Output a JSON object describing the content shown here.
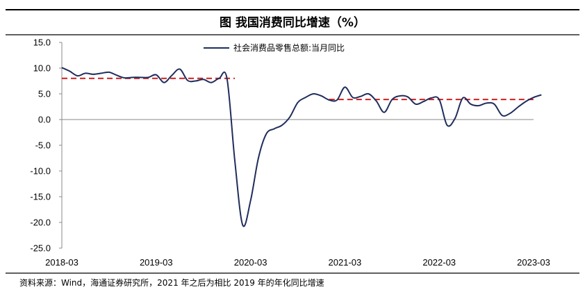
{
  "chart_data": {
    "type": "line",
    "title": "图  我国消费同比增速（%）",
    "xlabel": "",
    "ylabel": "",
    "ylim": [
      -25,
      15
    ],
    "yticks": [
      "15.0",
      "10.0",
      "5.0",
      "0.0",
      "-5.0",
      "-10.0",
      "-15.0",
      "-20.0",
      "-25.0"
    ],
    "ytick_values": [
      15,
      10,
      5,
      0,
      -5,
      -10,
      -15,
      -20,
      -25
    ],
    "xticks": [
      "2018-03",
      "2019-03",
      "2020-03",
      "2021-03",
      "2022-03",
      "2023-03"
    ],
    "xtick_values": [
      "2018-03",
      "2019-03",
      "2020-03",
      "2021-03",
      "2022-03",
      "2023-03"
    ],
    "legend": "top-center",
    "grid": false,
    "series": [
      {
        "name": "社会消费品零售总额:当月同比",
        "color": "#1f2d5c",
        "points": [
          [
            "2018-03",
            10.1
          ],
          [
            "2018-04",
            9.4
          ],
          [
            "2018-05",
            8.5
          ],
          [
            "2018-06",
            9.0
          ],
          [
            "2018-07",
            8.8
          ],
          [
            "2018-08",
            9.0
          ],
          [
            "2018-09",
            9.2
          ],
          [
            "2018-10",
            8.6
          ],
          [
            "2018-11",
            8.1
          ],
          [
            "2018-12",
            8.2
          ],
          [
            "2019-01",
            8.2
          ],
          [
            "2019-02",
            8.2
          ],
          [
            "2019-03",
            8.7
          ],
          [
            "2019-04",
            7.2
          ],
          [
            "2019-05",
            8.6
          ],
          [
            "2019-06",
            9.8
          ],
          [
            "2019-07",
            7.6
          ],
          [
            "2019-08",
            7.5
          ],
          [
            "2019-09",
            7.8
          ],
          [
            "2019-10",
            7.2
          ],
          [
            "2019-11",
            8.0
          ],
          [
            "2019-12",
            8.0
          ],
          [
            "2020-01",
            -8.0
          ],
          [
            "2020-02",
            -20.5
          ],
          [
            "2020-03",
            -15.8
          ],
          [
            "2020-04",
            -7.5
          ],
          [
            "2020-05",
            -2.8
          ],
          [
            "2020-06",
            -1.8
          ],
          [
            "2020-07",
            -1.1
          ],
          [
            "2020-08",
            0.5
          ],
          [
            "2020-09",
            3.3
          ],
          [
            "2020-10",
            4.3
          ],
          [
            "2020-11",
            5.0
          ],
          [
            "2020-12",
            4.6
          ],
          [
            "2021-01",
            3.8
          ],
          [
            "2021-02",
            3.8
          ],
          [
            "2021-03",
            6.3
          ],
          [
            "2021-04",
            4.3
          ],
          [
            "2021-05",
            4.5
          ],
          [
            "2021-06",
            5.0
          ],
          [
            "2021-07",
            3.6
          ],
          [
            "2021-08",
            1.4
          ],
          [
            "2021-09",
            3.9
          ],
          [
            "2021-10",
            4.6
          ],
          [
            "2021-11",
            4.4
          ],
          [
            "2021-12",
            3.0
          ],
          [
            "2022-01",
            3.5
          ],
          [
            "2022-02",
            4.2
          ],
          [
            "2022-03",
            3.9
          ],
          [
            "2022-04",
            -1.1
          ],
          [
            "2022-05",
            0.2
          ],
          [
            "2022-06",
            4.2
          ],
          [
            "2022-07",
            3.0
          ],
          [
            "2022-08",
            2.7
          ],
          [
            "2022-09",
            3.2
          ],
          [
            "2022-10",
            3.0
          ],
          [
            "2022-11",
            0.8
          ],
          [
            "2022-12",
            1.2
          ],
          [
            "2023-01",
            2.4
          ],
          [
            "2023-02",
            3.5
          ],
          [
            "2023-03",
            4.3
          ],
          [
            "2023-04",
            4.8
          ]
        ]
      }
    ],
    "reference_lines": [
      {
        "color": "#cc1f1f",
        "style": "dashed",
        "x_from": "2018-03",
        "x_to": "2020-01",
        "y": 8.0
      },
      {
        "color": "#cc1f1f",
        "style": "dashed",
        "x_from": "2021-01",
        "x_to": "2023-03",
        "y": 3.9
      }
    ],
    "source_note": "资料来源：Wind，海通证券研究所，2021 年之后为相比 2019 年的年化同比增速"
  }
}
